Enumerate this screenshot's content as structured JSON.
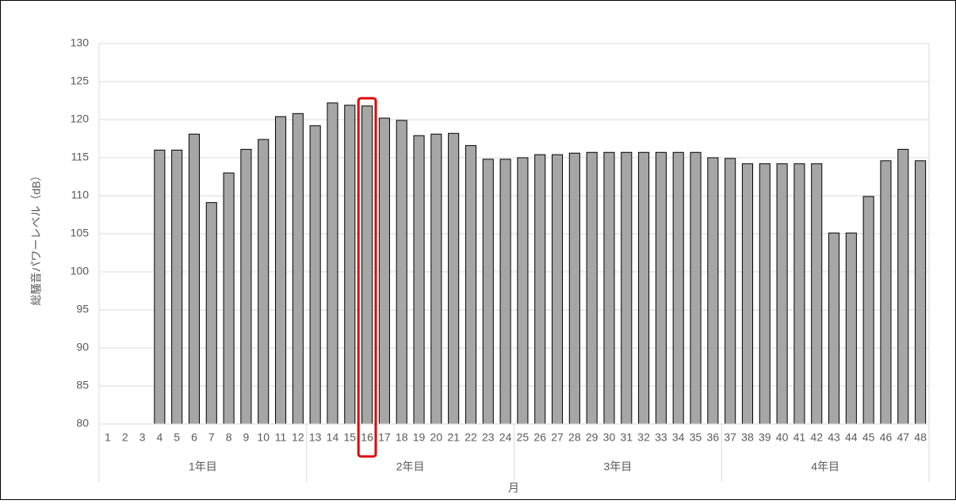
{
  "chart_data": {
    "type": "bar",
    "y_label": "総騒音パワーレベル（dB）",
    "x_label": "月",
    "categories": [
      "1",
      "2",
      "3",
      "4",
      "5",
      "6",
      "7",
      "8",
      "9",
      "10",
      "11",
      "12",
      "13",
      "14",
      "15",
      "16",
      "17",
      "18",
      "19",
      "20",
      "21",
      "22",
      "23",
      "24",
      "25",
      "26",
      "27",
      "28",
      "29",
      "30",
      "31",
      "32",
      "33",
      "34",
      "35",
      "36",
      "37",
      "38",
      "39",
      "40",
      "41",
      "42",
      "43",
      "44",
      "45",
      "46",
      "47",
      "48"
    ],
    "groups": [
      "1年目",
      "2年目",
      "3年目",
      "4年目"
    ],
    "values": [
      80,
      80,
      80,
      116,
      116,
      118.1,
      109.1,
      113,
      116.1,
      117.4,
      120.4,
      120.8,
      119.2,
      122.2,
      121.9,
      121.8,
      120.2,
      119.9,
      117.9,
      118.1,
      118.2,
      116.6,
      114.8,
      114.8,
      115,
      115.4,
      115.4,
      115.6,
      115.7,
      115.7,
      115.7,
      115.7,
      115.7,
      115.7,
      115.7,
      115,
      114.9,
      114.2,
      114.2,
      114.2,
      114.2,
      114.2,
      105.1,
      105.1,
      109.9,
      114.6,
      116.1,
      114.6
    ],
    "color": "#a6a6a6",
    "highlight": "16",
    "ylim": [
      80,
      130
    ],
    "yticks": [
      80,
      85,
      90,
      95,
      100,
      105,
      110,
      115,
      120,
      125,
      130
    ],
    "grid": true
  }
}
